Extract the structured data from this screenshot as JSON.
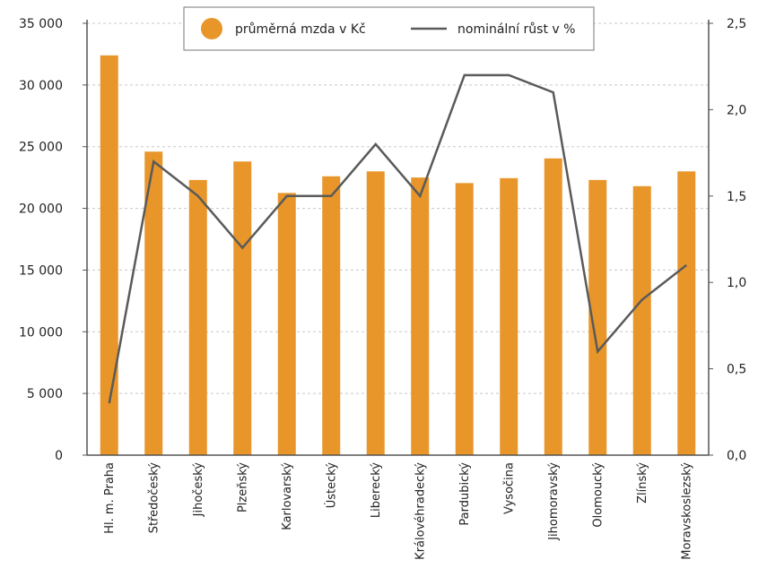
{
  "chart_data": {
    "type": "bar+line",
    "categories": [
      "Hl. m. Praha",
      "Středočeský",
      "Jihočeský",
      "Plzeňský",
      "Karlovarský",
      "Ústecký",
      "Liberecký",
      "Královéhradecký",
      "Pardubický",
      "Vysočina",
      "Jihomoravský",
      "Olomoucký",
      "Zlínský",
      "Moravskoslezský"
    ],
    "series": [
      {
        "name": "průměrná mzda v Kč",
        "type": "bar",
        "axis": "left",
        "color": "#E8962A",
        "values": [
          32400,
          24600,
          22300,
          23800,
          21250,
          22600,
          23000,
          22500,
          22050,
          22450,
          24050,
          22300,
          21800,
          23000
        ]
      },
      {
        "name": "nominální růst v %",
        "type": "line",
        "axis": "right",
        "color": "#5a5a5a",
        "values": [
          0.3,
          1.7,
          1.5,
          1.2,
          1.5,
          1.5,
          1.8,
          1.5,
          2.2,
          2.2,
          2.1,
          0.6,
          0.9,
          1.1
        ]
      }
    ],
    "y_left": {
      "min": 0,
      "max": 35000,
      "ticks": [
        0,
        5000,
        10000,
        15000,
        20000,
        25000,
        30000,
        35000
      ],
      "tick_labels": [
        "0",
        "5 000",
        "10 000",
        "15 000",
        "20 000",
        "25 000",
        "30 000",
        "35 000"
      ]
    },
    "y_right": {
      "min": 0,
      "max": 2.5,
      "ticks": [
        0,
        0.5,
        1.0,
        1.5,
        2.0,
        2.5
      ],
      "tick_labels": [
        "0,0",
        "0,5",
        "1,0",
        "1,5",
        "2,0",
        "2,5"
      ]
    },
    "grid": "horizontal-dashed",
    "legend_placement": "top-center"
  }
}
